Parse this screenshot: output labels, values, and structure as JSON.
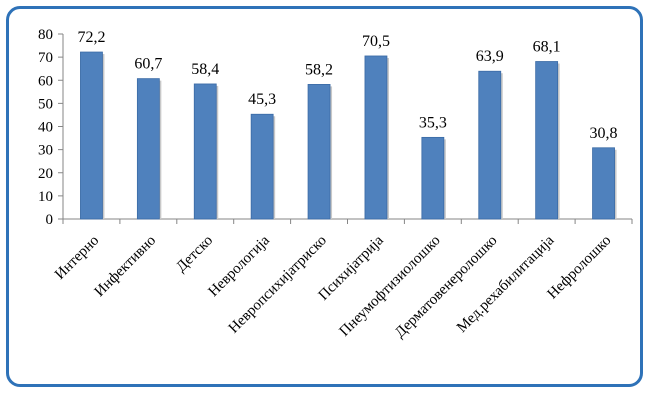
{
  "chart_data": {
    "type": "bar",
    "categories": [
      "Интерно",
      "Инфективно",
      "Детско",
      "Неврологија",
      "Невропсихијатриско",
      "Психијатрија",
      "Пнеумофтизиолошко",
      "Дерматовенеролошко",
      "Мед.рехабилитација",
      "Нефролошко"
    ],
    "values": [
      72.2,
      60.7,
      58.4,
      45.3,
      58.2,
      70.5,
      35.3,
      63.9,
      68.1,
      30.8
    ],
    "value_labels": [
      "72,2",
      "60,7",
      "58,4",
      "45,3",
      "58,2",
      "70,5",
      "35,3",
      "63,9",
      "68,1",
      "30,8"
    ],
    "y_ticks": [
      "0",
      "10",
      "20",
      "30",
      "40",
      "50",
      "60",
      "70",
      "80"
    ],
    "ylim": [
      0,
      80
    ],
    "title": "",
    "xlabel": "",
    "ylabel": "",
    "grid": false,
    "legend": "none",
    "colors": {
      "bar": "#4f81bd",
      "bar_edge": "#3a6aa5",
      "frame": "#2e72b8"
    }
  }
}
